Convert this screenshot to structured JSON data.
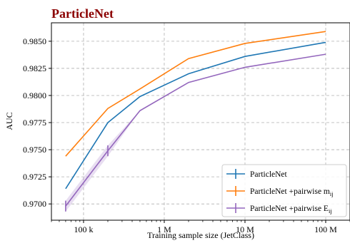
{
  "chart_data": {
    "type": "line",
    "title": "ParticleNet",
    "title_color": "#8b0000",
    "xlabel": "Training sample size (JetClass)",
    "ylabel": "AUC",
    "x_scale": "log",
    "xlim": [
      40000,
      200000000
    ],
    "ylim": [
      0.9685,
      0.9867
    ],
    "x_ticks": [
      {
        "value": 100000,
        "label": "100 k"
      },
      {
        "value": 1000000,
        "label": "1 M"
      },
      {
        "value": 10000000,
        "label": "10 M"
      },
      {
        "value": 100000000,
        "label": "100 M"
      }
    ],
    "y_ticks": [
      {
        "value": 0.97,
        "label": "0.9700"
      },
      {
        "value": 0.9725,
        "label": "0.9725"
      },
      {
        "value": 0.975,
        "label": "0.9750"
      },
      {
        "value": 0.9775,
        "label": "0.9775"
      },
      {
        "value": 0.98,
        "label": "0.9800"
      },
      {
        "value": 0.9825,
        "label": "0.9825"
      },
      {
        "value": 0.985,
        "label": "0.9850"
      }
    ],
    "grid": true,
    "legend_position": "bottom-right",
    "x": [
      60000,
      200000,
      500000,
      2000000,
      10000000,
      100000000
    ],
    "series": [
      {
        "name": "ParticleNet",
        "color": "#1f77b4",
        "values": [
          0.9714,
          0.9775,
          0.9799,
          0.982,
          0.9836,
          0.9849
        ]
      },
      {
        "name": "ParticleNet +pairwise m",
        "name_sub": "ij",
        "color": "#ff7f0e",
        "values": [
          0.9744,
          0.9788,
          0.9806,
          0.9834,
          0.9848,
          0.9859
        ]
      },
      {
        "name": "ParticleNet +pairwise E",
        "name_sub": "ij",
        "color": "#9467bd",
        "values": [
          0.9698,
          0.9749,
          0.9786,
          0.9812,
          0.9826,
          0.9838
        ],
        "band_low": [
          0.9693,
          0.9744,
          0.9786,
          0.9812,
          0.9826,
          0.9838
        ],
        "band_high": [
          0.9703,
          0.9754,
          0.9786,
          0.9812,
          0.9826,
          0.9838
        ],
        "errors": [
          {
            "x": 60000,
            "low": 0.9693,
            "high": 0.9703
          },
          {
            "x": 200000,
            "low": 0.9744,
            "high": 0.9754
          }
        ]
      }
    ]
  }
}
